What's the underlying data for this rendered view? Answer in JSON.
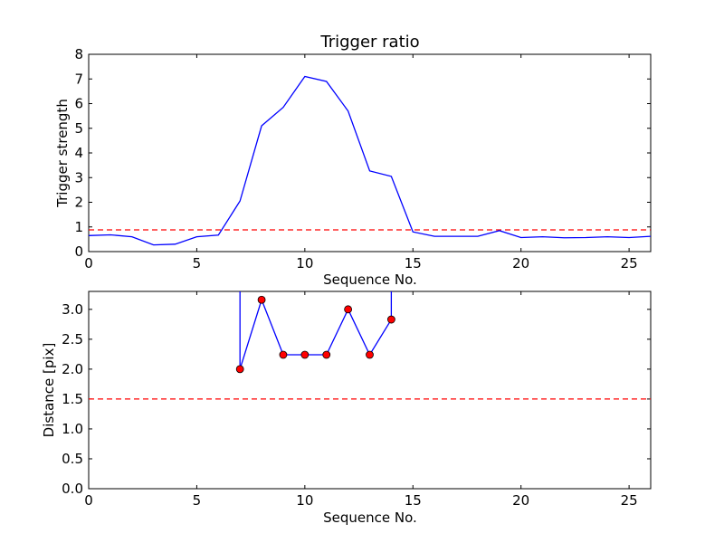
{
  "chart_data": [
    {
      "type": "line",
      "title": "Trigger ratio",
      "xlabel": "Sequence No.",
      "ylabel": "Trigger strength",
      "xlim": [
        0,
        26
      ],
      "ylim": [
        0,
        8
      ],
      "xticks": [
        0,
        5,
        10,
        15,
        20,
        25
      ],
      "yticks": [
        0,
        1,
        2,
        3,
        4,
        5,
        6,
        7,
        8
      ],
      "grid": false,
      "series": [
        {
          "x": [
            0,
            1,
            2,
            3,
            4,
            5,
            6,
            7,
            8,
            9,
            10,
            11,
            12,
            13,
            14,
            15,
            16,
            17,
            18,
            19,
            20,
            21,
            22,
            23,
            24,
            25,
            26
          ],
          "y": [
            0.65,
            0.68,
            0.6,
            0.27,
            0.3,
            0.6,
            0.67,
            2.05,
            5.1,
            5.85,
            7.1,
            6.9,
            5.7,
            3.27,
            3.05,
            0.8,
            0.62,
            0.62,
            0.62,
            0.85,
            0.57,
            0.6,
            0.56,
            0.57,
            0.6,
            0.57,
            0.62
          ],
          "color": "#0000ff",
          "style": "solid"
        }
      ],
      "reference_lines": [
        {
          "y": 0.88,
          "color": "#ff0000",
          "style": "dashed"
        }
      ]
    },
    {
      "type": "line",
      "title": "",
      "xlabel": "Sequence No.",
      "ylabel": "Distance [pix]",
      "xlim": [
        0,
        26
      ],
      "ylim": [
        0,
        3.3
      ],
      "xticks": [
        0,
        5,
        10,
        15,
        20,
        25
      ],
      "yticks": [
        0.0,
        0.5,
        1.0,
        1.5,
        2.0,
        2.5,
        3.0
      ],
      "grid": false,
      "series": [
        {
          "x": [
            7,
            7,
            8,
            9,
            10,
            11,
            12,
            13,
            14,
            14
          ],
          "y": [
            3.3,
            2.0,
            3.16,
            2.24,
            2.24,
            2.24,
            3.0,
            2.24,
            2.83,
            3.3
          ],
          "markers": [
            false,
            true,
            true,
            true,
            true,
            true,
            true,
            true,
            true,
            false
          ],
          "color": "#0000ff",
          "marker_color": "#ff0000",
          "style": "solid"
        }
      ],
      "reference_lines": [
        {
          "y": 1.5,
          "color": "#ff0000",
          "style": "dashed"
        }
      ]
    }
  ]
}
